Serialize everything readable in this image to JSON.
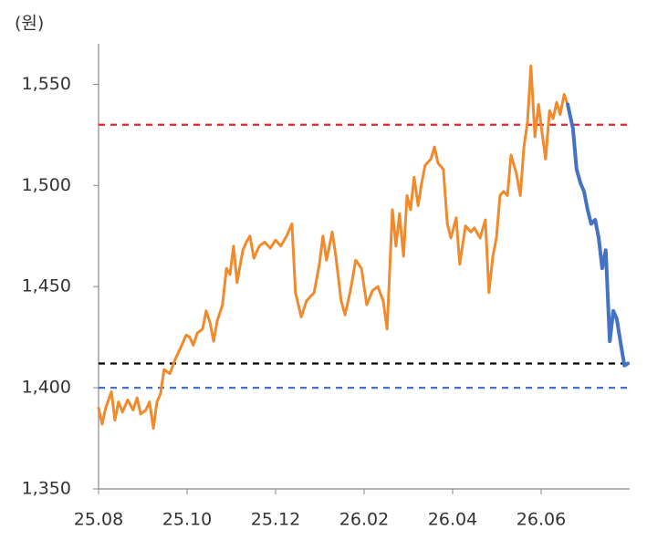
{
  "chart_data": {
    "type": "line",
    "y_label": "(원)",
    "xlim": [
      0,
      12
    ],
    "xticks": [
      {
        "value": 0,
        "label": "25.08"
      },
      {
        "value": 2,
        "label": "25.10"
      },
      {
        "value": 4,
        "label": "25.12"
      },
      {
        "value": 6,
        "label": "26.02"
      },
      {
        "value": 8,
        "label": "26.04"
      },
      {
        "value": 10,
        "label": "26.06"
      }
    ],
    "ylim": [
      1350,
      1570
    ],
    "yticks": [
      {
        "value": 1350,
        "label": "1,350"
      },
      {
        "value": 1400,
        "label": "1,400"
      },
      {
        "value": 1450,
        "label": "1,450"
      },
      {
        "value": 1500,
        "label": "1,500"
      },
      {
        "value": 1550,
        "label": "1,550"
      }
    ],
    "grid": false,
    "reference_lines": [
      {
        "value": 1530,
        "color": "#e0262b",
        "dashed": true
      },
      {
        "value": 1412,
        "color": "#000000",
        "dashed": true
      },
      {
        "value": 1400,
        "color": "#4472c4",
        "dashed": true
      }
    ],
    "series": [
      {
        "color": "#f08a2c",
        "x": [
          0,
          0.08,
          0.16,
          0.29,
          0.37,
          0.45,
          0.54,
          0.66,
          0.78,
          0.87,
          0.95,
          1.07,
          1.15,
          1.24,
          1.32,
          1.4,
          1.48,
          1.61,
          1.73,
          1.86,
          1.98,
          2.06,
          2.14,
          2.23,
          2.35,
          2.43,
          2.52,
          2.6,
          2.68,
          2.8,
          2.89,
          2.97,
          3.05,
          3.13,
          3.26,
          3.34,
          3.42,
          3.51,
          3.63,
          3.75,
          3.88,
          4.0,
          4.12,
          4.25,
          4.37,
          4.45,
          4.58,
          4.7,
          4.87,
          4.99,
          5.07,
          5.15,
          5.28,
          5.36,
          5.48,
          5.57,
          5.69,
          5.81,
          5.94,
          6.06,
          6.19,
          6.31,
          6.43,
          6.52,
          6.64,
          6.72,
          6.8,
          6.89,
          6.97,
          7.05,
          7.13,
          7.22,
          7.3,
          7.38,
          7.51,
          7.59,
          7.67,
          7.79,
          7.88,
          7.96,
          8.08,
          8.16,
          8.29,
          8.41,
          8.49,
          8.62,
          8.74,
          8.82,
          8.91,
          8.99,
          9.07,
          9.15,
          9.24,
          9.32,
          9.44,
          9.53,
          9.61,
          9.69,
          9.77,
          9.86,
          9.94,
          10.02,
          10.1,
          10.19,
          10.27,
          10.35,
          10.43,
          10.52,
          10.6
        ],
        "values": [
          1390,
          1382,
          1390,
          1398,
          1384,
          1393,
          1388,
          1394,
          1389,
          1395,
          1387,
          1389,
          1393,
          1380,
          1393,
          1397,
          1409,
          1407,
          1414,
          1420,
          1426,
          1425,
          1421,
          1427,
          1429,
          1438,
          1432,
          1423,
          1433,
          1441,
          1459,
          1456,
          1470,
          1452,
          1468,
          1472,
          1475,
          1464,
          1470,
          1472,
          1469,
          1473,
          1470,
          1475,
          1481,
          1447,
          1435,
          1443,
          1447,
          1461,
          1475,
          1463,
          1477,
          1465,
          1443,
          1436,
          1448,
          1463,
          1459,
          1441,
          1448,
          1450,
          1443,
          1429,
          1488,
          1470,
          1486,
          1465,
          1495,
          1488,
          1504,
          1490,
          1501,
          1510,
          1513,
          1519,
          1511,
          1508,
          1481,
          1474,
          1484,
          1461,
          1480,
          1477,
          1479,
          1474,
          1483,
          1447,
          1465,
          1474,
          1495,
          1497,
          1495,
          1515,
          1506,
          1495,
          1519,
          1531,
          1559,
          1524,
          1540,
          1526,
          1513,
          1537,
          1533,
          1541,
          1535,
          1545,
          1540
        ]
      },
      {
        "color": "#4472c4",
        "x": [
          10.6,
          10.72,
          10.8,
          10.89,
          10.97,
          11.05,
          11.13,
          11.22,
          11.3,
          11.38,
          11.46,
          11.55,
          11.63,
          11.71,
          11.79,
          11.88,
          11.96
        ],
        "values": [
          1540,
          1528,
          1508,
          1501,
          1497,
          1488,
          1481,
          1483,
          1474,
          1459,
          1468,
          1423,
          1438,
          1434,
          1423,
          1411,
          1412
        ]
      }
    ]
  }
}
